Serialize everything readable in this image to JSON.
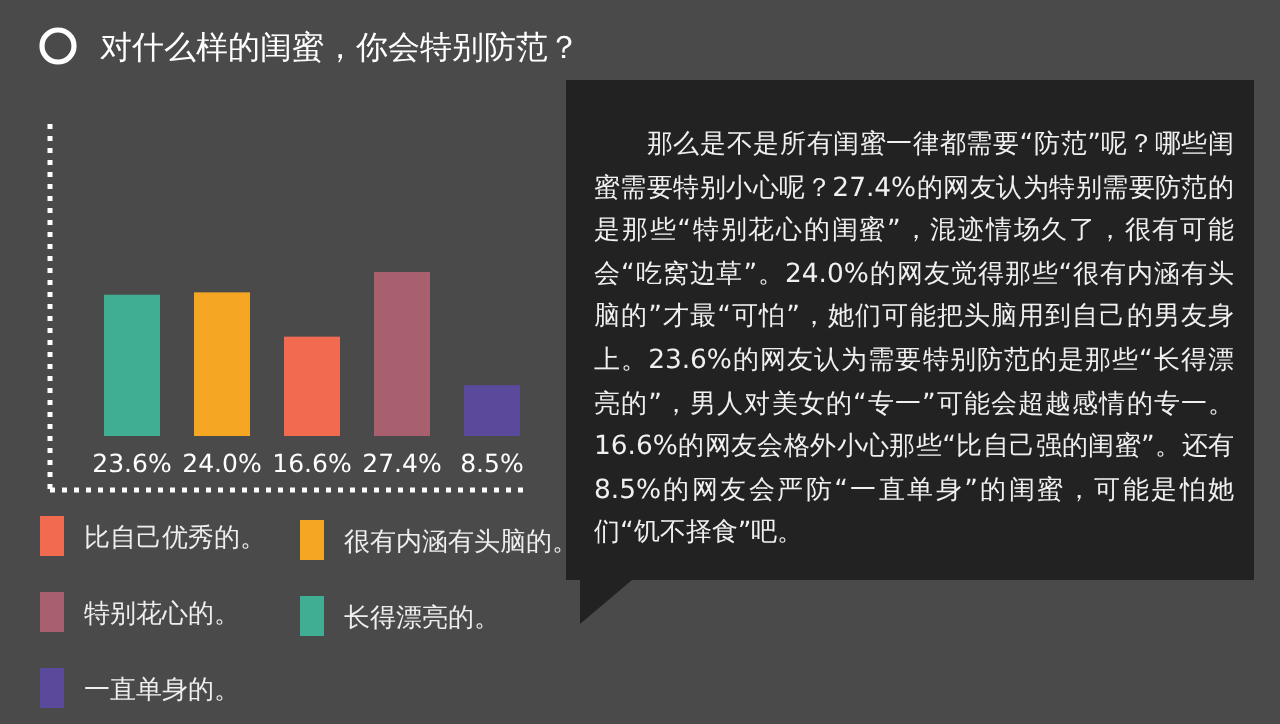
{
  "chart_data": {
    "type": "bar",
    "title": "对什么样的闺蜜，你会特别防范？",
    "categories": [
      null,
      null,
      null,
      null,
      null
    ],
    "stacked": true,
    "series": [
      {
        "name": "比自己优秀的。",
        "color": "#f26a4f",
        "values": [
          null,
          null,
          16.6,
          null,
          null
        ],
        "value_labels": [
          null,
          null,
          "16.6%",
          null,
          null
        ]
      },
      {
        "name": "很有内涵有头脑的。",
        "color": "#f5a623",
        "values": [
          null,
          24.0,
          null,
          null,
          null
        ],
        "value_labels": [
          null,
          "24.0%",
          null,
          null,
          null
        ]
      },
      {
        "name": "特别花心的。",
        "color": "#a85f6e",
        "values": [
          null,
          null,
          null,
          27.4,
          null
        ],
        "value_labels": [
          null,
          null,
          null,
          "27.4%",
          null
        ]
      },
      {
        "name": "长得漂亮的。",
        "color": "#3fae93",
        "values": [
          23.6,
          null,
          null,
          null,
          null
        ],
        "value_labels": [
          "23.6%",
          null,
          null,
          null,
          null
        ]
      },
      {
        "name": "一直单身的。",
        "color": "#5b4a9b",
        "values": [
          null,
          null,
          null,
          null,
          8.5
        ],
        "value_labels": [
          null,
          null,
          null,
          null,
          "8.5%"
        ]
      }
    ],
    "legend": "bottom",
    "annotations": [
      "那么是不是所有闺蜜一律都需要“防范”呢？哪些闺蜜需要特别小心呢？27.4%的网友认为特别需要防范的是那些“特别花心的闺蜜”，混迹情场久了，很有可能会“吃窝边草”。24.0%的网友觉得那些“很有内涵有头脑的”才最“可怕”，她们可能把头脑用到自己的男友身上。23.6%的网友认为需要特别防范的是那些“长得漂亮的”，男人对美女的“专一”可能会超越感情的专一。16.6%的网友会格外小心那些“比自己强的闺蜜”。还有8.5%的网友会严防“一直单身”的闺蜜，可能是怕她们“饥不择食”吧。"
    ]
  }
}
